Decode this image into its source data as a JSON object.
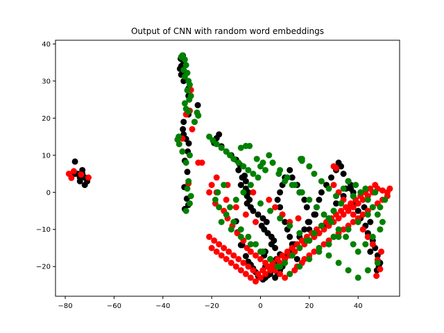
{
  "chart_data": {
    "type": "scatter",
    "title": "Output of CNN with random word embeddings",
    "xlabel": "",
    "ylabel": "",
    "xlim": [
      -84,
      57
    ],
    "ylim": [
      -28,
      41
    ],
    "xticks": [
      -80,
      -60,
      -40,
      -20,
      0,
      20,
      40
    ],
    "yticks": [
      -20,
      -10,
      0,
      10,
      20,
      30,
      40
    ],
    "grid": false,
    "legend": "none",
    "series": [
      {
        "color": "#000000",
        "x": [
          -76,
          -75,
          -74,
          -73,
          -72,
          -71,
          -72,
          -74,
          -76,
          -73,
          -31.8,
          -32.7,
          -31.5,
          -32.5,
          -33,
          -31.5,
          -32.5,
          -31.5,
          -29.5,
          -29.5,
          -25.7,
          -29.5,
          -31.5,
          -31.8,
          -31.5,
          -30.5,
          -29.4,
          -29.8,
          -31,
          -30,
          -17,
          -18,
          -19,
          -16,
          -14,
          -12,
          -10,
          -8.5,
          -9,
          -6.5,
          -7.5,
          -6,
          -8,
          -6,
          -5,
          -5.5,
          -4.5,
          -5.5,
          -4,
          -3,
          -1,
          1,
          2.5,
          0.5,
          1.5,
          3,
          4.5,
          5.5,
          4.5,
          6,
          2,
          1.5,
          6.5,
          5,
          2,
          1,
          4,
          6,
          7,
          8,
          9,
          10,
          11,
          12,
          13,
          14,
          16,
          18,
          20,
          22,
          23,
          24,
          25,
          27,
          29,
          31,
          32,
          33,
          34,
          36,
          37,
          38,
          39,
          40,
          41,
          43,
          44,
          46,
          47,
          48,
          49,
          48.5,
          47.7,
          45,
          44,
          45,
          42.5,
          38,
          37,
          36,
          35,
          34,
          31,
          30,
          28,
          26,
          24,
          22,
          20,
          19.5,
          22.5,
          19,
          18,
          16,
          15,
          13,
          12,
          10,
          9,
          8,
          7,
          8,
          9,
          10,
          11,
          12,
          13,
          14,
          15,
          -10,
          -9.5,
          -7.5,
          -8,
          -6,
          -5,
          -4,
          -3,
          -2,
          -1,
          0,
          1,
          2,
          3,
          4,
          5,
          6,
          7,
          8,
          -31.2,
          -30.2,
          -29.6,
          -31
        ],
        "y": [
          8.3,
          5,
          4,
          5,
          4,
          3,
          2,
          3,
          5,
          6,
          36.9,
          36,
          35,
          34,
          33.3,
          32.4,
          31.7,
          30,
          28,
          26,
          23.5,
          21,
          19,
          17,
          15.6,
          14.4,
          13.2,
          11,
          8.5,
          5.5,
          15.6,
          14.6,
          13.3,
          12.4,
          11,
          10,
          8.8,
          7.5,
          6,
          4.5,
          4,
          3,
          2,
          1,
          0,
          -1,
          -2,
          -3,
          -4,
          -5,
          -6,
          -7,
          -8,
          -9,
          -10,
          -11,
          -12,
          -13,
          -14,
          -15,
          -16,
          -17,
          -18,
          -19,
          -20,
          -21,
          -22,
          -23,
          -22,
          -21,
          -20,
          -18,
          -17,
          -16,
          -15,
          -14,
          -12,
          -10,
          -8,
          -6,
          -4,
          -2,
          0,
          2,
          4,
          6,
          8,
          7,
          5,
          3,
          1,
          -1,
          -3,
          -5,
          -7,
          -9,
          -11,
          -13,
          -15,
          -17,
          -19,
          -20,
          -21,
          -16,
          -12,
          -8,
          -4,
          0,
          2,
          3,
          1,
          -1,
          -3,
          -5,
          -7,
          -9,
          -11,
          -12,
          -10,
          -8,
          -6,
          -4,
          -2,
          0,
          2,
          4,
          6,
          4,
          2,
          0,
          -2,
          -4,
          -6,
          -8,
          -10,
          -12,
          -14,
          -16,
          -18,
          -7.8,
          -10.8,
          -14.2,
          -14.2,
          -17.2,
          -18.7,
          -19.5,
          -20.5,
          -21.5,
          -22.5,
          -23,
          -23.5,
          -23,
          -22.4,
          -21.4,
          -20.4,
          -19.2,
          -18,
          -16.7,
          1.4,
          -1.7,
          -3.4,
          -4.5
        ],
        "label": ""
      },
      {
        "color": "#ff0000",
        "x": [
          -78.5,
          -77.5,
          -76.5,
          -73.5,
          -70.5,
          -28.5,
          -29,
          -30.5,
          -27,
          -28,
          -25.5,
          -21,
          -18.5,
          -15,
          -13.5,
          -11.5,
          -9.5,
          -7,
          -5.5,
          -4,
          -2,
          0,
          2,
          4,
          6,
          8,
          10,
          12,
          14,
          15,
          17,
          18,
          20,
          22,
          24,
          26,
          28,
          30,
          32,
          34,
          36,
          38,
          40,
          42,
          44,
          46,
          48,
          50,
          52,
          53,
          52,
          50,
          48,
          46,
          44,
          42,
          40,
          38,
          36,
          34,
          32,
          30,
          28,
          26,
          24,
          22,
          20,
          18,
          16,
          14,
          12,
          10,
          8,
          6,
          4,
          2,
          0,
          -2,
          -4,
          -6,
          -8,
          -10,
          -12,
          -14,
          -16,
          -18,
          -20,
          -21,
          -19,
          -17,
          -15,
          -13,
          -11,
          -9,
          -7,
          -5,
          -3,
          -1,
          1,
          3,
          5,
          7,
          9,
          11,
          13,
          15,
          17,
          19,
          21,
          23,
          25,
          27,
          29,
          31,
          33,
          35,
          37,
          39,
          41,
          43,
          45,
          47,
          49,
          47.5,
          48,
          49.5,
          46,
          44,
          42,
          40,
          38,
          36,
          34,
          32,
          30,
          30,
          31,
          -2,
          -6,
          -10,
          -14,
          -18,
          -20,
          -29.5,
          -32,
          -24,
          -18,
          -13.5,
          -3,
          3.5,
          6,
          9,
          12,
          15.5
        ],
        "y": [
          5,
          3.9,
          5.7,
          4.8,
          4,
          27.6,
          22,
          21,
          19,
          17,
          8,
          0,
          -3,
          -5,
          -7,
          -9,
          -11,
          -13,
          -15,
          -16,
          -17,
          -18,
          -19,
          -20,
          -21,
          -22,
          -23,
          -22,
          -21,
          -20,
          -19,
          -18,
          -17,
          -16,
          -15,
          -14,
          -13,
          -12,
          -11,
          -10,
          -9,
          -8,
          -7,
          -6,
          -5,
          -4,
          -3,
          -2,
          -1,
          1,
          0,
          0.5,
          1,
          0,
          -1,
          -2,
          -3,
          -4,
          -5,
          -6,
          -7,
          -8,
          -9,
          -10,
          -11,
          -12,
          -13,
          -14,
          -15,
          -16,
          -17,
          -18,
          -19,
          -20,
          -21,
          -22,
          -23,
          -24,
          -23,
          -22,
          -21,
          -20,
          -19,
          -18,
          -17,
          -16,
          -15,
          -12,
          -13,
          -14,
          -15,
          -16,
          -17,
          -18,
          -19,
          -20,
          -21,
          -22,
          -21,
          -20,
          -19,
          -18,
          -17,
          -16,
          -15,
          -14,
          -13,
          -12,
          -11,
          -10,
          -9,
          -8,
          -7,
          -6,
          -5,
          -4,
          -3,
          -2,
          -1,
          0,
          1,
          2,
          -20.7,
          -22.5,
          -18.2,
          -16,
          -14,
          -12,
          -10,
          -8,
          -6,
          -4,
          -2,
          0,
          2,
          7,
          6.5,
          -8,
          -6,
          -4,
          -2,
          0,
          2,
          2.4,
          14.5,
          8,
          4,
          2,
          0,
          -2,
          -4,
          -6,
          -8,
          -7
        ],
        "label": ""
      },
      {
        "color": "#008000",
        "x": [
          -32,
          -31,
          -32.5,
          -30.5,
          -31.5,
          -30,
          -31,
          -29.5,
          -29,
          -30,
          -28.5,
          -29.2,
          -31,
          -30.5,
          -29.5,
          -26,
          -25.5,
          -27,
          -33.5,
          -33.3,
          -32,
          -29,
          -30.5,
          -21,
          -19.5,
          -18,
          -16,
          -14,
          -12.5,
          -11,
          -9,
          -7,
          -5,
          -3,
          -4.5,
          -1.5,
          0,
          1,
          3.5,
          5,
          7.5,
          10,
          13,
          16,
          17,
          20,
          22,
          25,
          28,
          31,
          34,
          36,
          39,
          41,
          44,
          46,
          48,
          50,
          49,
          46,
          43,
          40,
          38,
          35,
          32,
          29,
          26,
          23,
          20,
          17,
          14,
          11,
          8,
          5,
          2,
          -1,
          -4,
          -7,
          -10,
          -12.5,
          -15,
          -17.5,
          -18.5,
          -17,
          -14,
          -11,
          -8,
          -5,
          -2,
          1,
          4,
          7,
          10,
          13,
          16,
          19,
          22,
          25,
          28,
          30,
          33,
          38,
          43,
          47,
          51,
          49,
          44,
          40,
          36,
          32,
          28,
          24,
          20,
          16,
          12,
          8,
          4,
          0,
          -4,
          -8,
          -12,
          -16,
          16.5,
          17,
          30,
          -6,
          -8,
          0,
          4,
          8,
          12,
          16,
          20,
          24,
          28,
          32,
          36,
          40,
          44,
          48,
          -29.5,
          -30,
          -28.5,
          -29,
          -34,
          -30.5
        ],
        "y": [
          36.9,
          35.8,
          36.5,
          34.3,
          33,
          32.2,
          31.2,
          30,
          29,
          27.5,
          26,
          25,
          24,
          22.5,
          21.8,
          21.5,
          20.7,
          19,
          15,
          13,
          11,
          10,
          8,
          15,
          14,
          13,
          12,
          11,
          10,
          9,
          8,
          7,
          6,
          5,
          12.5,
          9,
          7,
          8,
          10,
          8,
          5,
          3,
          2,
          0,
          9,
          7,
          5,
          3,
          1,
          -1,
          1,
          3,
          2,
          0,
          -2,
          -4,
          -6,
          -8,
          -10,
          -12,
          -14,
          -16,
          -14,
          -12,
          -10,
          -8,
          -6,
          -4,
          -2,
          0,
          2,
          4,
          6,
          8,
          6,
          4,
          2,
          0,
          -2,
          -4,
          2,
          0,
          -2,
          -4,
          -6,
          -8,
          -10,
          -12,
          -14,
          -16,
          -18,
          -20,
          -19,
          -17,
          -15,
          -13,
          -11,
          -9,
          -7,
          -5,
          -3,
          -1,
          1,
          0,
          -2,
          -4,
          -6,
          -8,
          -10,
          -12,
          -14,
          -16,
          -18,
          -20,
          -22,
          -20,
          -18,
          -16,
          -14,
          -12,
          -10,
          -8,
          9,
          8.5,
          -12,
          12.5,
          12,
          -3,
          -5,
          -7,
          -9,
          -11,
          -13,
          -15,
          -17,
          -19,
          -21,
          -23,
          -21,
          -19,
          3,
          1,
          -1,
          -3,
          14.2,
          -5
        ]
      }
    ]
  }
}
